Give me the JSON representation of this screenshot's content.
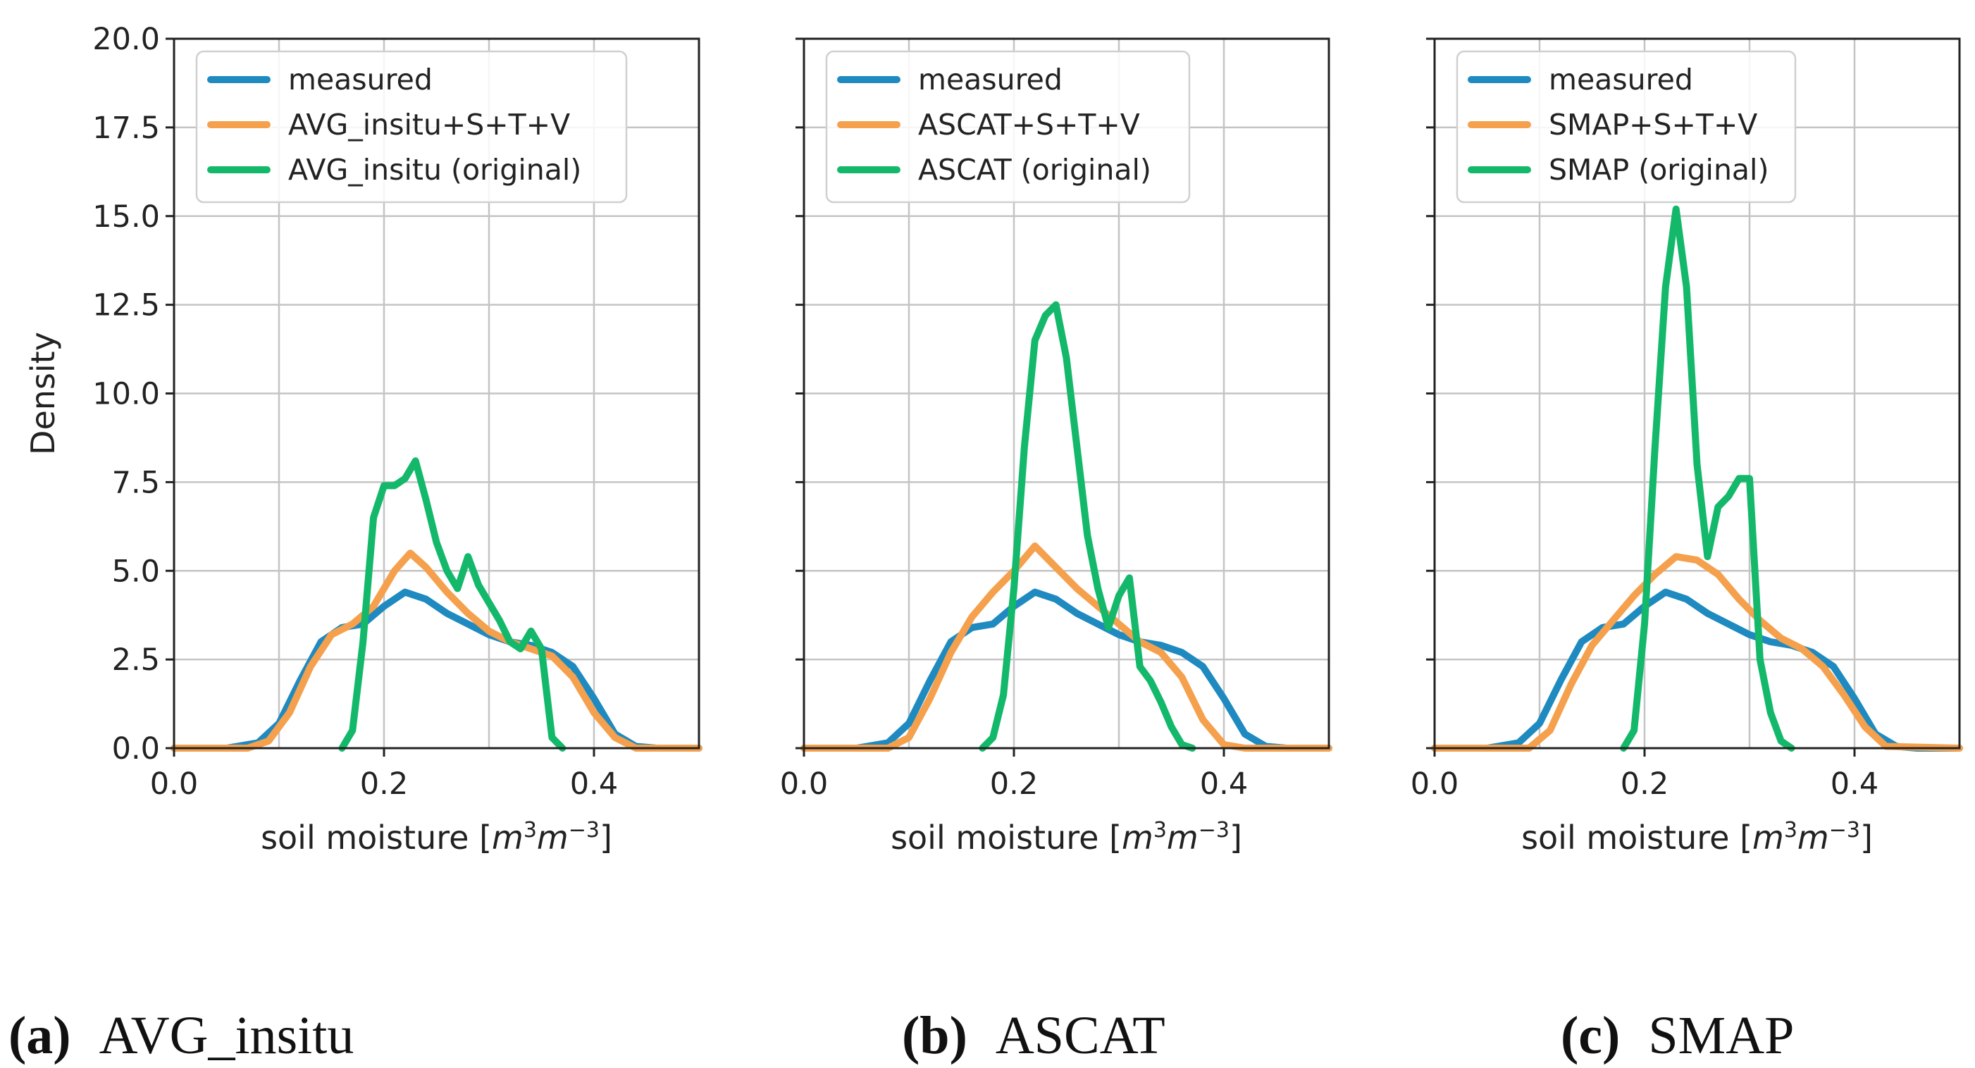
{
  "chart_data": [
    {
      "type": "line",
      "caption_letter": "(a)",
      "caption_text": "AVG_insitu",
      "xlabel_text": "soil moisture [",
      "xlabel_unit_m": "m",
      "xlabel_unit_exp1": "3",
      "xlabel_unit_m2": "m",
      "xlabel_unit_exp2": "−3",
      "xlabel_close": "]",
      "ylabel": "Density",
      "xlim": [
        0,
        0.5
      ],
      "ylim": [
        0,
        20
      ],
      "xticks": [
        "0.0",
        "0.2",
        "0.4"
      ],
      "yticks": [
        "0.0",
        "2.5",
        "5.0",
        "7.5",
        "10.0",
        "12.5",
        "15.0",
        "17.5",
        "20.0"
      ],
      "grid": true,
      "legend_position": "upper-left",
      "series": [
        {
          "name": "measured",
          "color": "#1f8ac0",
          "x": [
            0.0,
            0.05,
            0.08,
            0.1,
            0.12,
            0.14,
            0.16,
            0.18,
            0.2,
            0.22,
            0.24,
            0.26,
            0.28,
            0.3,
            0.32,
            0.34,
            0.36,
            0.38,
            0.4,
            0.42,
            0.44,
            0.46,
            0.5
          ],
          "y": [
            0.0,
            0.0,
            0.15,
            0.7,
            1.9,
            3.0,
            3.4,
            3.5,
            4.0,
            4.4,
            4.2,
            3.8,
            3.5,
            3.2,
            3.0,
            2.9,
            2.7,
            2.3,
            1.4,
            0.4,
            0.05,
            0.0,
            0.0
          ]
        },
        {
          "name": "AVG_insitu+S+T+V",
          "color": "#f5a04c",
          "x": [
            0.0,
            0.07,
            0.09,
            0.11,
            0.13,
            0.15,
            0.17,
            0.19,
            0.21,
            0.225,
            0.24,
            0.26,
            0.28,
            0.3,
            0.32,
            0.34,
            0.36,
            0.38,
            0.4,
            0.42,
            0.44,
            0.5
          ],
          "y": [
            0.0,
            0.0,
            0.2,
            1.0,
            2.3,
            3.2,
            3.5,
            4.0,
            5.0,
            5.5,
            5.1,
            4.4,
            3.8,
            3.3,
            3.0,
            2.8,
            2.6,
            2.0,
            1.0,
            0.3,
            0.0,
            0.0
          ]
        },
        {
          "name": "AVG_insitu (original)",
          "color": "#14b86a",
          "x": [
            0.16,
            0.17,
            0.18,
            0.19,
            0.2,
            0.21,
            0.22,
            0.23,
            0.24,
            0.25,
            0.26,
            0.27,
            0.28,
            0.29,
            0.3,
            0.31,
            0.32,
            0.33,
            0.34,
            0.35,
            0.36,
            0.37
          ],
          "y": [
            0.0,
            0.5,
            3.0,
            6.5,
            7.4,
            7.4,
            7.6,
            8.1,
            7.0,
            5.8,
            5.0,
            4.5,
            5.4,
            4.6,
            4.1,
            3.6,
            3.0,
            2.8,
            3.3,
            2.8,
            0.3,
            0.0
          ]
        }
      ]
    },
    {
      "type": "line",
      "caption_letter": "(b)",
      "caption_text": "ASCAT",
      "xlabel_text": "soil moisture [",
      "xlabel_unit_m": "m",
      "xlabel_unit_exp1": "3",
      "xlabel_unit_m2": "m",
      "xlabel_unit_exp2": "−3",
      "xlabel_close": "]",
      "xlim": [
        0,
        0.5
      ],
      "ylim": [
        0,
        20
      ],
      "xticks": [
        "0.0",
        "0.2",
        "0.4"
      ],
      "grid": true,
      "legend_position": "upper-left",
      "series": [
        {
          "name": "measured",
          "color": "#1f8ac0",
          "x": [
            0.0,
            0.05,
            0.08,
            0.1,
            0.12,
            0.14,
            0.16,
            0.18,
            0.2,
            0.22,
            0.24,
            0.26,
            0.28,
            0.3,
            0.32,
            0.34,
            0.36,
            0.38,
            0.4,
            0.42,
            0.44,
            0.46,
            0.5
          ],
          "y": [
            0.0,
            0.0,
            0.15,
            0.7,
            1.9,
            3.0,
            3.4,
            3.5,
            4.0,
            4.4,
            4.2,
            3.8,
            3.5,
            3.2,
            3.0,
            2.9,
            2.7,
            2.3,
            1.4,
            0.4,
            0.05,
            0.0,
            0.0
          ]
        },
        {
          "name": "ASCAT+S+T+V",
          "color": "#f5a04c",
          "x": [
            0.0,
            0.08,
            0.1,
            0.12,
            0.14,
            0.16,
            0.18,
            0.2,
            0.22,
            0.24,
            0.26,
            0.28,
            0.3,
            0.32,
            0.34,
            0.36,
            0.38,
            0.4,
            0.42,
            0.5
          ],
          "y": [
            0.0,
            0.0,
            0.3,
            1.4,
            2.7,
            3.7,
            4.4,
            5.0,
            5.7,
            5.1,
            4.5,
            4.0,
            3.5,
            3.0,
            2.7,
            2.0,
            0.8,
            0.1,
            0.0,
            0.0
          ]
        },
        {
          "name": "ASCAT (original)",
          "color": "#14b86a",
          "x": [
            0.17,
            0.18,
            0.19,
            0.2,
            0.21,
            0.22,
            0.23,
            0.24,
            0.25,
            0.26,
            0.27,
            0.28,
            0.29,
            0.3,
            0.31,
            0.32,
            0.33,
            0.34,
            0.35,
            0.36,
            0.37
          ],
          "y": [
            0.0,
            0.3,
            1.5,
            4.5,
            8.5,
            11.5,
            12.2,
            12.5,
            11.0,
            8.5,
            6.0,
            4.5,
            3.4,
            4.3,
            4.8,
            2.3,
            1.9,
            1.3,
            0.6,
            0.1,
            0.0
          ]
        }
      ]
    },
    {
      "type": "line",
      "caption_letter": "(c)",
      "caption_text": "SMAP",
      "xlabel_text": "soil moisture [",
      "xlabel_unit_m": "m",
      "xlabel_unit_exp1": "3",
      "xlabel_unit_m2": "m",
      "xlabel_unit_exp2": "−3",
      "xlabel_close": "]",
      "xlim": [
        0,
        0.5
      ],
      "ylim": [
        0,
        20
      ],
      "xticks": [
        "0.0",
        "0.2",
        "0.4"
      ],
      "grid": true,
      "legend_position": "upper-left",
      "series": [
        {
          "name": "measured",
          "color": "#1f8ac0",
          "x": [
            0.0,
            0.05,
            0.08,
            0.1,
            0.12,
            0.14,
            0.16,
            0.18,
            0.2,
            0.22,
            0.24,
            0.26,
            0.28,
            0.3,
            0.32,
            0.34,
            0.36,
            0.38,
            0.4,
            0.42,
            0.44,
            0.46,
            0.5
          ],
          "y": [
            0.0,
            0.0,
            0.15,
            0.7,
            1.9,
            3.0,
            3.4,
            3.5,
            4.0,
            4.4,
            4.2,
            3.8,
            3.5,
            3.2,
            3.0,
            2.9,
            2.7,
            2.3,
            1.4,
            0.4,
            0.05,
            0.0,
            0.0
          ]
        },
        {
          "name": "SMAP+S+T+V",
          "color": "#f5a04c",
          "x": [
            0.0,
            0.09,
            0.11,
            0.13,
            0.15,
            0.17,
            0.19,
            0.21,
            0.23,
            0.25,
            0.27,
            0.29,
            0.31,
            0.33,
            0.35,
            0.37,
            0.39,
            0.41,
            0.43,
            0.5
          ],
          "y": [
            0.0,
            0.0,
            0.5,
            1.8,
            2.9,
            3.6,
            4.3,
            4.9,
            5.4,
            5.3,
            4.9,
            4.2,
            3.6,
            3.1,
            2.8,
            2.3,
            1.5,
            0.6,
            0.05,
            0.0
          ]
        },
        {
          "name": "SMAP (original)",
          "color": "#14b86a",
          "x": [
            0.18,
            0.19,
            0.2,
            0.21,
            0.22,
            0.23,
            0.24,
            0.25,
            0.26,
            0.27,
            0.28,
            0.29,
            0.3,
            0.31,
            0.32,
            0.33,
            0.34
          ],
          "y": [
            0.0,
            0.5,
            3.5,
            8.5,
            13.0,
            15.2,
            13.0,
            8.0,
            5.4,
            6.8,
            7.1,
            7.6,
            7.6,
            2.5,
            1.0,
            0.2,
            0.0
          ]
        }
      ]
    }
  ]
}
